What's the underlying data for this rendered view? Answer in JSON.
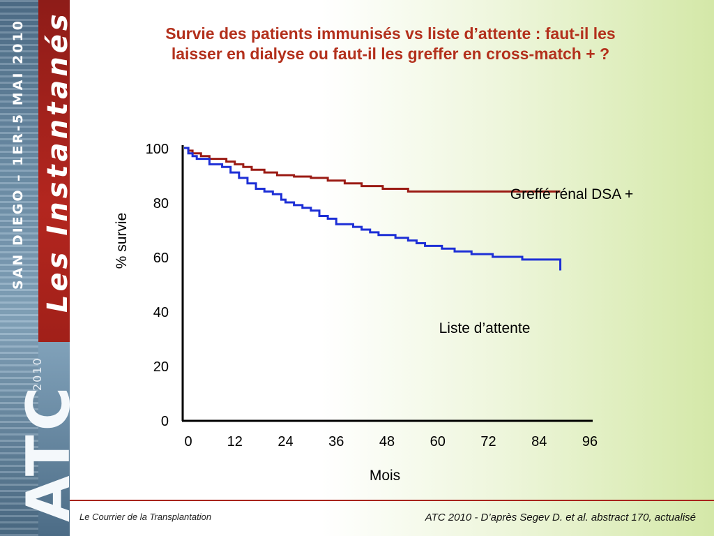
{
  "sidebar": {
    "event_text": "SAN DIEGO – 1ER-5 MAI 2010",
    "brand_text": "Les Instantanés",
    "logo_text": "ATC",
    "logo_year": "2010"
  },
  "slide": {
    "title_line1": "Survie des patients immunisés vs liste d’attente : faut-il les",
    "title_line2": "laisser en dialyse ou faut-il les greffer en cross-match + ?"
  },
  "footer": {
    "left": "Le Courrier de la Transplantation",
    "right": "ATC 2010 - D’après Segev D. et al. abstract 170, actualisé"
  },
  "colors": {
    "title": "#b3301c",
    "graft_series": "#9b1b14",
    "waitlist_series": "#1d2fd6",
    "axis": "#000000"
  },
  "chart_data": {
    "type": "line",
    "title": "",
    "xlabel": "Mois",
    "ylabel": "% survie",
    "xlim": [
      0,
      96
    ],
    "ylim": [
      0,
      100
    ],
    "xticks": [
      "0",
      "12",
      "24",
      "36",
      "48",
      "60",
      "72",
      "84",
      "96"
    ],
    "yticks": [
      "0",
      "20",
      "40",
      "60",
      "80",
      "100"
    ],
    "grid": false,
    "legend": "inline labels",
    "series": [
      {
        "name": "Greffé rénal DSA +",
        "step": true,
        "color": "#9b1b14",
        "points": [
          [
            0,
            100
          ],
          [
            1,
            99
          ],
          [
            2,
            98
          ],
          [
            4,
            97
          ],
          [
            6,
            96
          ],
          [
            10,
            95
          ],
          [
            12,
            94
          ],
          [
            14,
            93
          ],
          [
            16,
            92
          ],
          [
            19,
            91
          ],
          [
            22,
            90
          ],
          [
            26,
            89.5
          ],
          [
            30,
            89
          ],
          [
            34,
            88
          ],
          [
            38,
            87
          ],
          [
            42,
            86
          ],
          [
            47,
            85
          ],
          [
            53,
            84
          ],
          [
            60,
            84
          ],
          [
            89,
            84
          ]
        ]
      },
      {
        "name": "Liste d’attente",
        "step": true,
        "color": "#1d2fd6",
        "points": [
          [
            0,
            100
          ],
          [
            1,
            98
          ],
          [
            2,
            97
          ],
          [
            3,
            96
          ],
          [
            6,
            94
          ],
          [
            9,
            93
          ],
          [
            11,
            91
          ],
          [
            13,
            89
          ],
          [
            15,
            87
          ],
          [
            17,
            85
          ],
          [
            19,
            84
          ],
          [
            21,
            83
          ],
          [
            23,
            81
          ],
          [
            24,
            80
          ],
          [
            26,
            79
          ],
          [
            28,
            78
          ],
          [
            30,
            77
          ],
          [
            32,
            75
          ],
          [
            34,
            74
          ],
          [
            36,
            72
          ],
          [
            40,
            71
          ],
          [
            42,
            70
          ],
          [
            44,
            69
          ],
          [
            46,
            68
          ],
          [
            50,
            67
          ],
          [
            53,
            66
          ],
          [
            55,
            65
          ],
          [
            57,
            64
          ],
          [
            61,
            63
          ],
          [
            64,
            62
          ],
          [
            68,
            61
          ],
          [
            73,
            60
          ],
          [
            80,
            59
          ],
          [
            88,
            59
          ],
          [
            89,
            55
          ]
        ]
      }
    ]
  }
}
